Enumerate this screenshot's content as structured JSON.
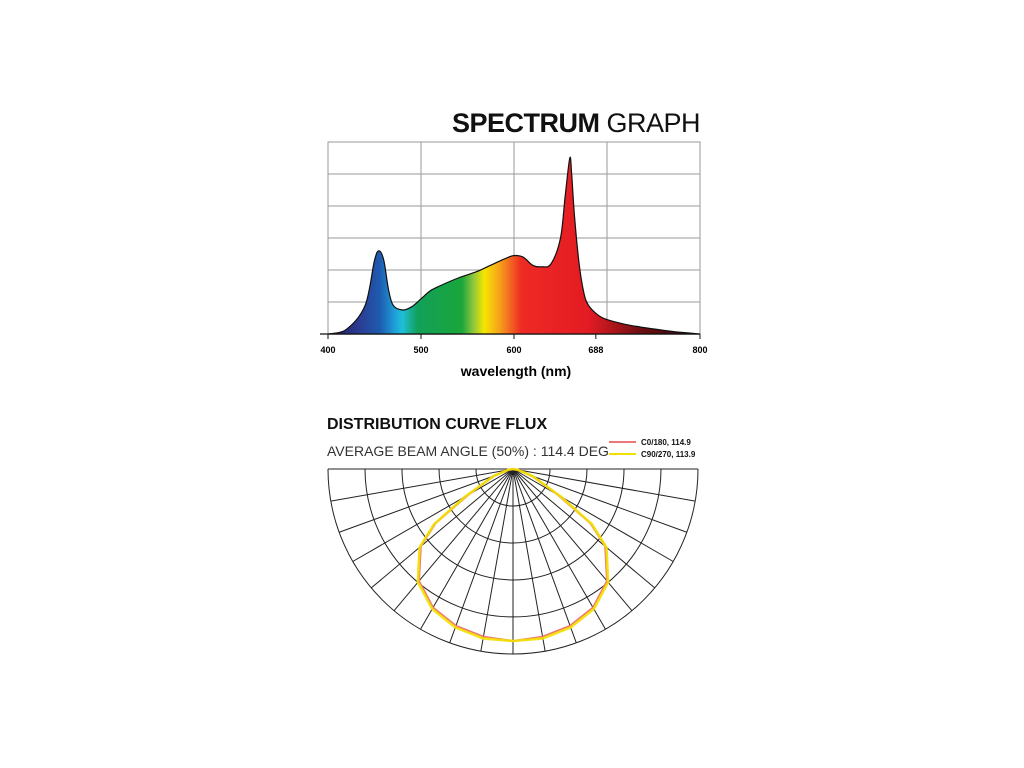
{
  "title": {
    "bold": "SPECTRUM",
    "light": "GRAPH"
  },
  "distribution": {
    "title": "DISTRIBUTION CURVE FLUX",
    "beam_angle": "AVERAGE BEAM ANGLE  (50%) : 114.4 DEG"
  },
  "chart_data": [
    {
      "type": "area",
      "title": "SPECTRUM GRAPH",
      "xlabel": "wavelength (nm)",
      "ylabel": "",
      "xlim": [
        400,
        800
      ],
      "ylim": [
        0,
        6
      ],
      "xticks": [
        400,
        500,
        600,
        688,
        800
      ],
      "grid": true,
      "series": [
        {
          "x": [
            400,
            420,
            440,
            450,
            455,
            460,
            465,
            470,
            480,
            490,
            500,
            510,
            520,
            540,
            560,
            575,
            590,
            600,
            610,
            620,
            630,
            640,
            650,
            655,
            660,
            662,
            665,
            670,
            675,
            680,
            690,
            700,
            720,
            740,
            760,
            780,
            800
          ],
          "values": [
            0.0,
            0.15,
            0.9,
            2.3,
            2.6,
            2.3,
            1.4,
            0.9,
            0.75,
            0.85,
            1.1,
            1.35,
            1.5,
            1.75,
            1.95,
            2.15,
            2.35,
            2.45,
            2.4,
            2.15,
            2.1,
            2.2,
            3.0,
            4.3,
            5.5,
            5.0,
            3.7,
            2.2,
            1.3,
            0.9,
            0.6,
            0.45,
            0.3,
            0.2,
            0.12,
            0.05,
            0.0
          ]
        }
      ]
    },
    {
      "type": "polar",
      "title": "DISTRIBUTION CURVE FLUX",
      "angle_range_deg": [
        -90,
        90
      ],
      "series": [
        {
          "name": "C0/180, 114.9",
          "color": "#f07575",
          "angles": [
            -90,
            -80,
            -70,
            -60,
            -55,
            -50,
            -40,
            -30,
            -20,
            -10,
            0,
            10,
            20,
            30,
            40,
            50,
            55,
            60,
            70,
            80,
            90
          ],
          "values": [
            0,
            0.03,
            0.12,
            0.3,
            0.55,
            0.7,
            0.85,
            0.93,
            0.97,
            0.99,
            1.0,
            0.99,
            0.97,
            0.93,
            0.85,
            0.7,
            0.55,
            0.3,
            0.12,
            0.03,
            0
          ]
        },
        {
          "name": "C90/270, 113.9",
          "color": "#f2e100",
          "angles": [
            -90,
            -80,
            -70,
            -60,
            -55,
            -50,
            -40,
            -30,
            -20,
            -10,
            0,
            10,
            20,
            30,
            40,
            50,
            55,
            60,
            70,
            80,
            90
          ],
          "values": [
            0,
            0.03,
            0.12,
            0.32,
            0.56,
            0.71,
            0.86,
            0.94,
            0.98,
            1.0,
            1.0,
            1.0,
            0.98,
            0.94,
            0.86,
            0.71,
            0.56,
            0.32,
            0.12,
            0.03,
            0
          ]
        }
      ]
    }
  ]
}
